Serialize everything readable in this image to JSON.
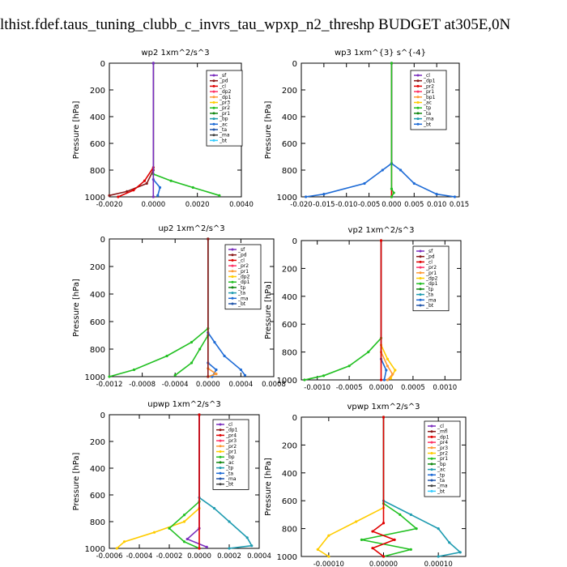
{
  "title": "lthist.fdef.taus_tuning_clubb_c_invrs_tau_wpxp_n2_threshp  BUDGET at305E,0N",
  "chart_data": [
    {
      "type": "line",
      "title": "wp2   1xm^2/s^3",
      "ylabel": "Pressure  [hPa]",
      "ylim": [
        1000,
        0
      ],
      "yticks": [
        "0",
        "200",
        "400",
        "600",
        "800",
        "1000"
      ],
      "xlim": [
        -0.002,
        0.004
      ],
      "xticks": [
        {
          "v": -0.002,
          "label": "-0.0020"
        },
        {
          "v": 0.0,
          "label": "0.0000"
        },
        {
          "v": 0.002,
          "label": "0.0020"
        },
        {
          "v": 0.004,
          "label": "0.0040"
        }
      ],
      "legend": [
        "_sf",
        "_pd",
        "_cl",
        "_dp2",
        "_dp1",
        "_pr3",
        "_pr2",
        "_pr1",
        "_bp",
        "_ac",
        "_ta",
        "_ma",
        "_bt"
      ],
      "series": [
        {
          "color": "#8b1a1a",
          "points": [
            [
              0,
              0
            ],
            [
              0,
              800
            ],
            [
              -0.0003,
              900
            ],
            [
              -0.0012,
              960
            ],
            [
              -0.002,
              990
            ]
          ]
        },
        {
          "color": "#e00000",
          "points": [
            [
              0,
              0
            ],
            [
              0,
              780
            ],
            [
              -0.0004,
              880
            ],
            [
              -0.0009,
              950
            ],
            [
              -0.0016,
              1000
            ]
          ]
        },
        {
          "color": "#22c022",
          "points": [
            [
              0,
              0
            ],
            [
              0,
              830
            ],
            [
              0.0008,
              880
            ],
            [
              0.0018,
              930
            ],
            [
              0.003,
              990
            ]
          ]
        },
        {
          "color": "#1e6bd6",
          "points": [
            [
              0,
              0
            ],
            [
              0,
              870
            ],
            [
              0.0003,
              930
            ],
            [
              0.0002,
              990
            ]
          ]
        },
        {
          "color": "#7b2fbe",
          "points": [
            [
              0,
              0
            ],
            [
              0,
              1000
            ]
          ]
        }
      ]
    },
    {
      "type": "line",
      "title": "wp3   1xm^{3} s^{-4}",
      "ylabel": "Pressure  [hPa]",
      "ylim": [
        1000,
        0
      ],
      "yticks": [
        "0",
        "200",
        "400",
        "600",
        "800",
        "1000"
      ],
      "xlim": [
        -0.02,
        0.015
      ],
      "xticks": [
        {
          "v": -0.02,
          "label": "-0.020"
        },
        {
          "v": -0.015,
          "label": "-0.015"
        },
        {
          "v": -0.01,
          "label": "-0.010"
        },
        {
          "v": -0.005,
          "label": "-0.005"
        },
        {
          "v": 0.0,
          "label": "0.000"
        },
        {
          "v": 0.005,
          "label": "0.005"
        },
        {
          "v": 0.01,
          "label": "0.010"
        },
        {
          "v": 0.015,
          "label": "0.015"
        }
      ],
      "legend": [
        "_cl",
        "_dp1",
        "_pr2",
        "_pr1",
        "_bp1",
        "_ac",
        "_tp",
        "_ta",
        "_ma",
        "_bt"
      ],
      "series": [
        {
          "color": "#1e6bd6",
          "points": [
            [
              0,
              0
            ],
            [
              0,
              750
            ],
            [
              -0.002,
              800
            ],
            [
              -0.006,
              900
            ],
            [
              -0.015,
              980
            ],
            [
              -0.019,
              1000
            ]
          ]
        },
        {
          "color": "#1e6bd6",
          "points": [
            [
              0,
              0
            ],
            [
              0,
              750
            ],
            [
              0.002,
              800
            ],
            [
              0.005,
              900
            ],
            [
              0.01,
              980
            ],
            [
              0.014,
              1000
            ]
          ]
        },
        {
          "color": "#e00000",
          "points": [
            [
              0,
              0
            ],
            [
              0,
              1000
            ]
          ]
        },
        {
          "color": "#22c022",
          "points": [
            [
              0,
              0
            ],
            [
              0,
              940
            ],
            [
              0.0005,
              970
            ],
            [
              0,
              1000
            ]
          ]
        }
      ]
    },
    {
      "type": "line",
      "title": "up2   1xm^2/s^3",
      "ylabel": "Pressure  [hPa]",
      "ylim": [
        1000,
        0
      ],
      "yticks": [
        "0",
        "200",
        "400",
        "600",
        "800",
        "1000"
      ],
      "xlim": [
        -0.0012,
        0.0008
      ],
      "xticks": [
        {
          "v": -0.0012,
          "label": "-0.0012"
        },
        {
          "v": -0.0008,
          "label": "-0.0008"
        },
        {
          "v": -0.0004,
          "label": "-0.0004"
        },
        {
          "v": 0.0,
          "label": "0.0000"
        },
        {
          "v": 0.0004,
          "label": "0.0004"
        },
        {
          "v": 0.0008,
          "label": "0.0008"
        }
      ],
      "legend": [
        "_sf",
        "_pd",
        "_cl",
        "_pr2",
        "_pr1",
        "_dp2",
        "_dp1",
        "_tp",
        "_ta",
        "_ma",
        "_bt"
      ],
      "series": [
        {
          "color": "#22c022",
          "points": [
            [
              0,
              0
            ],
            [
              0,
              650
            ],
            [
              -0.0002,
              750
            ],
            [
              -0.0005,
              850
            ],
            [
              -0.0009,
              950
            ],
            [
              -0.0012,
              1000
            ]
          ]
        },
        {
          "color": "#22c022",
          "points": [
            [
              0,
              0
            ],
            [
              0,
              700
            ],
            [
              -0.0001,
              800
            ],
            [
              -0.0002,
              900
            ],
            [
              -0.0004,
              990
            ]
          ]
        },
        {
          "color": "#1e6bd6",
          "points": [
            [
              0,
              0
            ],
            [
              0,
              680
            ],
            [
              8e-05,
              750
            ],
            [
              0.0002,
              850
            ],
            [
              0.0004,
              950
            ],
            [
              0.00045,
              990
            ]
          ]
        },
        {
          "color": "#1e6bd6",
          "points": [
            [
              0,
              0
            ],
            [
              0,
              900
            ],
            [
              0.0001,
              950
            ],
            [
              5e-05,
              1000
            ]
          ]
        },
        {
          "color": "#ff9933",
          "points": [
            [
              0,
              0
            ],
            [
              0,
              940
            ],
            [
              0.0001,
              980
            ],
            [
              0,
              1000
            ]
          ]
        },
        {
          "color": "#8b1a1a",
          "points": [
            [
              0,
              0
            ],
            [
              0,
              1000
            ]
          ]
        }
      ]
    },
    {
      "type": "line",
      "title": "vp2   1xm^2/s^3",
      "ylabel": "Pressure  [hPa]",
      "ylim": [
        1000,
        0
      ],
      "yticks": [
        "0",
        "200",
        "400",
        "600",
        "800",
        "1000"
      ],
      "xlim": [
        -0.00125,
        0.00125
      ],
      "xticks": [
        {
          "v": -0.001,
          "label": "-0.0010"
        },
        {
          "v": -0.0005,
          "label": "-0.0005"
        },
        {
          "v": 0.0,
          "label": "0.0000"
        },
        {
          "v": 0.0005,
          "label": "0.0005"
        },
        {
          "v": 0.001,
          "label": "0.0010"
        }
      ],
      "legend": [
        "_sf",
        "_pd",
        "_cl",
        "_pr2",
        "_pr1",
        "_dp2",
        "_dp1",
        "_tp",
        "_ta",
        "_ma",
        "_bt"
      ],
      "series": [
        {
          "color": "#22c022",
          "points": [
            [
              0,
              0
            ],
            [
              0,
              700
            ],
            [
              -0.0002,
              800
            ],
            [
              -0.0005,
              900
            ],
            [
              -0.0009,
              970
            ],
            [
              -0.0012,
              1000
            ]
          ]
        },
        {
          "color": "#ffcc00",
          "points": [
            [
              0,
              0
            ],
            [
              0,
              750
            ],
            [
              0.0001,
              850
            ],
            [
              0.00022,
              930
            ],
            [
              0.00015,
              990
            ]
          ]
        },
        {
          "color": "#ff9933",
          "points": [
            [
              0,
              0
            ],
            [
              0,
              800
            ],
            [
              0.0001,
              900
            ],
            [
              0.00018,
              960
            ],
            [
              0.0001,
              1000
            ]
          ]
        },
        {
          "color": "#1e6bd6",
          "points": [
            [
              0,
              0
            ],
            [
              0,
              850
            ],
            [
              8e-05,
              930
            ],
            [
              5e-05,
              1000
            ]
          ]
        },
        {
          "color": "#e00000",
          "points": [
            [
              0,
              0
            ],
            [
              0,
              1000
            ]
          ]
        }
      ]
    },
    {
      "type": "line",
      "title": "upwp   1xm^2/s^3",
      "ylabel": "Pressure  [hPa]",
      "ylim": [
        1000,
        0
      ],
      "yticks": [
        "0",
        "200",
        "400",
        "600",
        "800",
        "1000"
      ],
      "xlim": [
        -0.0006,
        0.0004
      ],
      "xticks": [
        {
          "v": -0.0006,
          "label": "-0.0006"
        },
        {
          "v": -0.0004,
          "label": "-0.0004"
        },
        {
          "v": -0.0002,
          "label": "-0.0002"
        },
        {
          "v": 0.0,
          "label": "0.0000"
        },
        {
          "v": 0.0002,
          "label": "0.0002"
        },
        {
          "v": 0.0004,
          "label": "0.0004"
        }
      ],
      "legend": [
        "_cl",
        "_dp1",
        "_pr4",
        "_pr3",
        "_pr2",
        "_pr1",
        "_bp",
        "_ac",
        "_tp",
        "_ta",
        "_ma",
        "_bt"
      ],
      "series": [
        {
          "color": "#ffcc00",
          "points": [
            [
              0,
              0
            ],
            [
              0,
              700
            ],
            [
              -0.0001,
              800
            ],
            [
              -0.0003,
              880
            ],
            [
              -0.0005,
              950
            ],
            [
              -0.00055,
              1000
            ]
          ]
        },
        {
          "color": "#22c022",
          "points": [
            [
              0,
              0
            ],
            [
              0,
              650
            ],
            [
              -0.0001,
              750
            ],
            [
              -0.0002,
              850
            ],
            [
              -0.0001,
              950
            ],
            [
              0,
              1000
            ]
          ]
        },
        {
          "color": "#1e9bb0",
          "points": [
            [
              0,
              0
            ],
            [
              0,
              620
            ],
            [
              0.0001,
              700
            ],
            [
              0.0002,
              800
            ],
            [
              0.00032,
              920
            ],
            [
              0.00035,
              980
            ],
            [
              0.0002,
              1000
            ]
          ]
        },
        {
          "color": "#7b2fbe",
          "points": [
            [
              0,
              0
            ],
            [
              0,
              850
            ],
            [
              -8e-05,
              930
            ],
            [
              5e-05,
              990
            ]
          ]
        },
        {
          "color": "#e00000",
          "points": [
            [
              0,
              0
            ],
            [
              0,
              1000
            ]
          ]
        }
      ]
    },
    {
      "type": "line",
      "title": "vpwp   1xm^2/s^3",
      "ylabel": "Pressure  [hPa]",
      "ylim": [
        1000,
        0
      ],
      "yticks": [
        "0",
        "200",
        "400",
        "600",
        "800",
        "1000"
      ],
      "xlim": [
        -0.00015,
        0.00015
      ],
      "xticks": [
        {
          "v": -0.0001,
          "label": "-0.00010"
        },
        {
          "v": 0.0,
          "label": "0.00000"
        },
        {
          "v": 0.0001,
          "label": "0.00010"
        }
      ],
      "legend": [
        "_cl",
        "_mfl",
        "_dp1",
        "_pr4",
        "_pr3",
        "_pr2",
        "_pr1",
        "_bp",
        "_ac",
        "_tp",
        "_ta",
        "_ma",
        "_bt"
      ],
      "series": [
        {
          "color": "#ffcc00",
          "points": [
            [
              0,
              0
            ],
            [
              0,
              650
            ],
            [
              -5e-05,
              750
            ],
            [
              -0.0001,
              850
            ],
            [
              -0.00012,
              950
            ],
            [
              -0.0001,
              1000
            ]
          ]
        },
        {
          "color": "#22c022",
          "points": [
            [
              0,
              0
            ],
            [
              0,
              620
            ],
            [
              3e-05,
              700
            ],
            [
              6e-05,
              800
            ],
            [
              -4e-05,
              880
            ],
            [
              5e-05,
              950
            ],
            [
              0,
              1000
            ]
          ]
        },
        {
          "color": "#1e9bb0",
          "points": [
            [
              0,
              0
            ],
            [
              0,
              600
            ],
            [
              5e-05,
              700
            ],
            [
              0.0001,
              800
            ],
            [
              0.00012,
              900
            ],
            [
              0.00014,
              970
            ],
            [
              0.0001,
              1000
            ]
          ]
        },
        {
          "color": "#e00000",
          "points": [
            [
              0,
              0
            ],
            [
              0,
              760
            ],
            [
              -2e-05,
              820
            ],
            [
              2e-05,
              880
            ],
            [
              -2e-05,
              940
            ],
            [
              0,
              1000
            ]
          ]
        }
      ]
    }
  ]
}
